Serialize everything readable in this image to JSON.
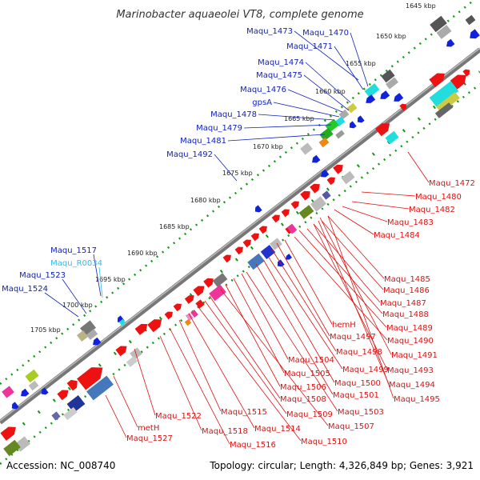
{
  "title": "Marinobacter aquaeolei VT8, complete genome",
  "footer": {
    "accession": "Accession: NC_008740",
    "summary": "Topology: circular; Length: 4,326,849 bp; Genes: 3,921"
  },
  "colors": {
    "forward_gene": "#ee1111",
    "reverse_gene": "#1122dd",
    "label_red": "#dd1111",
    "label_blue": "#1122bb",
    "label_cyan": "#33bbee",
    "backbone": "#888888",
    "tick_green": "#119911"
  },
  "kbp_ticks": [
    "1645 kbp",
    "1650 kbp",
    "1655 kbp",
    "1660 kbp",
    "1665 kbp",
    "1670 kbp",
    "1675 kbp",
    "1680 kbp",
    "1685 kbp",
    "1690 kbp",
    "1695 kbp",
    "1700 kbp",
    "1705 kbp"
  ],
  "labels_top": [
    "Maqu_1473",
    "Maqu_1470",
    "Maqu_1471",
    "Maqu_1474",
    "Maqu_1475",
    "Maqu_1476",
    "gpsA",
    "Maqu_1478",
    "Maqu_1479",
    "Maqu_1481",
    "Maqu_1492"
  ],
  "labels_left": [
    "Maqu_1517",
    "Maqu_R0034",
    "Maqu_1523",
    "Maqu_1524"
  ],
  "labels_right": [
    "Maqu_1472",
    "Maqu_1480",
    "Maqu_1482",
    "Maqu_1483",
    "Maqu_1484",
    "Maqu_1485",
    "Maqu_1486",
    "Maqu_1487",
    "Maqu_1488",
    "Maqu_1489",
    "Maqu_1490",
    "Maqu_1491",
    "Maqu_1493",
    "Maqu_1494",
    "Maqu_1495",
    "hemH",
    "Maqu_1497",
    "Maqu_1498",
    "Maqu_1499",
    "Maqu_1500",
    "Maqu_1501",
    "Maqu_1503",
    "Maqu_1504",
    "Maqu_1505",
    "Maqu_1506",
    "Maqu_1507",
    "Maqu_1508",
    "Maqu_1509",
    "Maqu_1510",
    "Maqu_1514",
    "Maqu_1515",
    "Maqu_1516",
    "Maqu_1518",
    "Maqu_1522",
    "metH",
    "Maqu_1527"
  ]
}
